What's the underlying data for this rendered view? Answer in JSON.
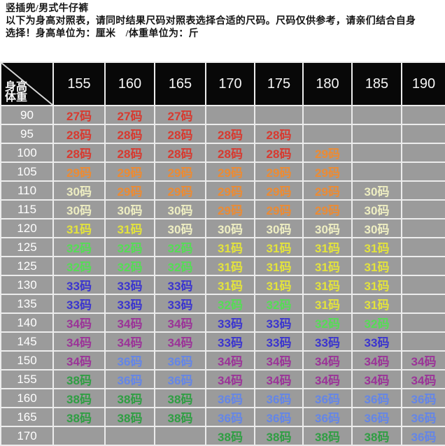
{
  "intro": {
    "line1": "竖插兜/男式牛仔裤",
    "line2": "以下为身高对照表，请同时结果尺码对照表选择合适的尺码。尺码仅供参考，请亲们结合自身",
    "line3": "选择！身高单位为：厘米　/体重单位为：斤"
  },
  "table": {
    "corner": {
      "top": "身高",
      "bottom": "体重"
    },
    "heights": [
      "155",
      "160",
      "165",
      "170",
      "175",
      "180",
      "185",
      "190"
    ],
    "rows": [
      {
        "weight": "90",
        "cells": [
          [
            "27码",
            "red"
          ],
          [
            "27码",
            "red"
          ],
          [
            "27码",
            "red"
          ],
          null,
          null,
          null,
          null,
          null
        ]
      },
      {
        "weight": "95",
        "cells": [
          [
            "28码",
            "red"
          ],
          [
            "28码",
            "red"
          ],
          [
            "28码",
            "red"
          ],
          [
            "28码",
            "red"
          ],
          [
            "28码",
            "red"
          ],
          null,
          null,
          null
        ]
      },
      {
        "weight": "100",
        "cells": [
          [
            "28码",
            "red"
          ],
          [
            "28码",
            "red"
          ],
          [
            "28码",
            "red"
          ],
          [
            "28码",
            "red"
          ],
          [
            "28码",
            "red"
          ],
          [
            "29码",
            "orange"
          ],
          null,
          null
        ]
      },
      {
        "weight": "105",
        "cells": [
          [
            "29码",
            "orange"
          ],
          [
            "29码",
            "orange"
          ],
          [
            "29码",
            "orange"
          ],
          [
            "29码",
            "orange"
          ],
          [
            "29码",
            "orange"
          ],
          [
            "29码",
            "orange"
          ],
          null,
          null
        ]
      },
      {
        "weight": "110",
        "cells": [
          [
            "30码",
            "cream"
          ],
          [
            "29码",
            "orange"
          ],
          [
            "29码",
            "orange"
          ],
          [
            "29码",
            "orange"
          ],
          [
            "29码",
            "orange"
          ],
          [
            "29码",
            "orange"
          ],
          [
            "30码",
            "cream"
          ],
          null
        ]
      },
      {
        "weight": "115",
        "cells": [
          [
            "30码",
            "cream"
          ],
          [
            "30码",
            "cream"
          ],
          [
            "30码",
            "cream"
          ],
          [
            "29码",
            "orange"
          ],
          [
            "29码",
            "orange"
          ],
          [
            "29码",
            "orange"
          ],
          [
            "30码",
            "cream"
          ],
          null
        ]
      },
      {
        "weight": "120",
        "cells": [
          [
            "31码",
            "yellow"
          ],
          [
            "31码",
            "yellow"
          ],
          [
            "30码",
            "cream"
          ],
          [
            "30码",
            "cream"
          ],
          [
            "30码",
            "cream"
          ],
          [
            "30码",
            "cream"
          ],
          [
            "30码",
            "cream"
          ],
          null
        ]
      },
      {
        "weight": "125",
        "cells": [
          [
            "32码",
            "green"
          ],
          [
            "32码",
            "green"
          ],
          [
            "32码",
            "green"
          ],
          [
            "31码",
            "yellow"
          ],
          [
            "31码",
            "yellow"
          ],
          [
            "31码",
            "yellow"
          ],
          [
            "31码",
            "yellow"
          ],
          null
        ]
      },
      {
        "weight": "125",
        "cells": [
          [
            "32码",
            "green"
          ],
          [
            "32码",
            "green"
          ],
          [
            "32码",
            "green"
          ],
          [
            "31码",
            "yellow"
          ],
          [
            "31码",
            "yellow"
          ],
          [
            "31码",
            "yellow"
          ],
          [
            "31码",
            "yellow"
          ],
          null
        ]
      },
      {
        "weight": "130",
        "cells": [
          [
            "33码",
            "blue"
          ],
          [
            "33码",
            "blue"
          ],
          [
            "33码",
            "blue"
          ],
          [
            "31码",
            "yellow"
          ],
          [
            "31码",
            "yellow"
          ],
          [
            "31码",
            "yellow"
          ],
          [
            "31码",
            "yellow"
          ],
          null
        ]
      },
      {
        "weight": "135",
        "cells": [
          [
            "33码",
            "blue"
          ],
          [
            "33码",
            "blue"
          ],
          [
            "33码",
            "blue"
          ],
          [
            "32码",
            "green"
          ],
          [
            "32码",
            "green"
          ],
          [
            "31码",
            "yellow"
          ],
          [
            "31码",
            "yellow"
          ],
          null
        ]
      },
      {
        "weight": "140",
        "cells": [
          [
            "34码",
            "purple"
          ],
          [
            "34码",
            "purple"
          ],
          [
            "34码",
            "purple"
          ],
          [
            "33码",
            "blue"
          ],
          [
            "33码",
            "blue"
          ],
          [
            "32码",
            "green"
          ],
          [
            "32码",
            "green"
          ],
          null
        ]
      },
      {
        "weight": "145",
        "cells": [
          [
            "34码",
            "purple"
          ],
          [
            "34码",
            "purple"
          ],
          [
            "34码",
            "purple"
          ],
          [
            "33码",
            "blue"
          ],
          [
            "33码",
            "blue"
          ],
          [
            "33码",
            "blue"
          ],
          [
            "33码",
            "blue"
          ],
          null
        ]
      },
      {
        "weight": "150",
        "cells": [
          [
            "34码",
            "purple"
          ],
          [
            "36码",
            "ltblue"
          ],
          [
            "36码",
            "ltblue"
          ],
          [
            "34码",
            "purple"
          ],
          [
            "34码",
            "purple"
          ],
          [
            "34码",
            "purple"
          ],
          [
            "34码",
            "purple"
          ],
          [
            "34码",
            "purple"
          ]
        ]
      },
      {
        "weight": "155",
        "cells": [
          [
            "38码",
            "dkgreen"
          ],
          [
            "36码",
            "ltblue"
          ],
          [
            "36码",
            "ltblue"
          ],
          [
            "34码",
            "purple"
          ],
          [
            "34码",
            "purple"
          ],
          [
            "34码",
            "purple"
          ],
          [
            "34码",
            "purple"
          ],
          [
            "34码",
            "purple"
          ]
        ]
      },
      {
        "weight": "160",
        "cells": [
          [
            "38码",
            "dkgreen"
          ],
          [
            "38码",
            "dkgreen"
          ],
          [
            "38码",
            "dkgreen"
          ],
          [
            "36码",
            "ltblue"
          ],
          [
            "36码",
            "ltblue"
          ],
          [
            "36码",
            "ltblue"
          ],
          [
            "36码",
            "ltblue"
          ],
          [
            "36码",
            "ltblue"
          ]
        ]
      },
      {
        "weight": "165",
        "cells": [
          [
            "38码",
            "dkgreen"
          ],
          [
            "38码",
            "dkgreen"
          ],
          [
            "38码",
            "dkgreen"
          ],
          [
            "36码",
            "ltblue"
          ],
          [
            "36码",
            "ltblue"
          ],
          [
            "36码",
            "ltblue"
          ],
          [
            "36码",
            "ltblue"
          ],
          [
            "36码",
            "ltblue"
          ]
        ]
      },
      {
        "weight": "170",
        "cells": [
          null,
          null,
          null,
          [
            "38码",
            "dkgreen"
          ],
          [
            "38码",
            "dkgreen"
          ],
          [
            "38码",
            "dkgreen"
          ],
          [
            "38码",
            "dkgreen"
          ],
          [
            "36码",
            "ltblue"
          ]
        ]
      }
    ]
  },
  "colors": {
    "red": "#d73a30",
    "orange": "#ec8b33",
    "cream": "#eeeec2",
    "yellow": "#e3e33c",
    "green": "#55dd55",
    "blue": "#3b35cf",
    "purple": "#9b3498",
    "ltblue": "#6486e8",
    "dkgreen": "#2f9e43",
    "table_bg": "#9b9b9b",
    "header_bg": "#080808",
    "grid": "#ececec"
  }
}
